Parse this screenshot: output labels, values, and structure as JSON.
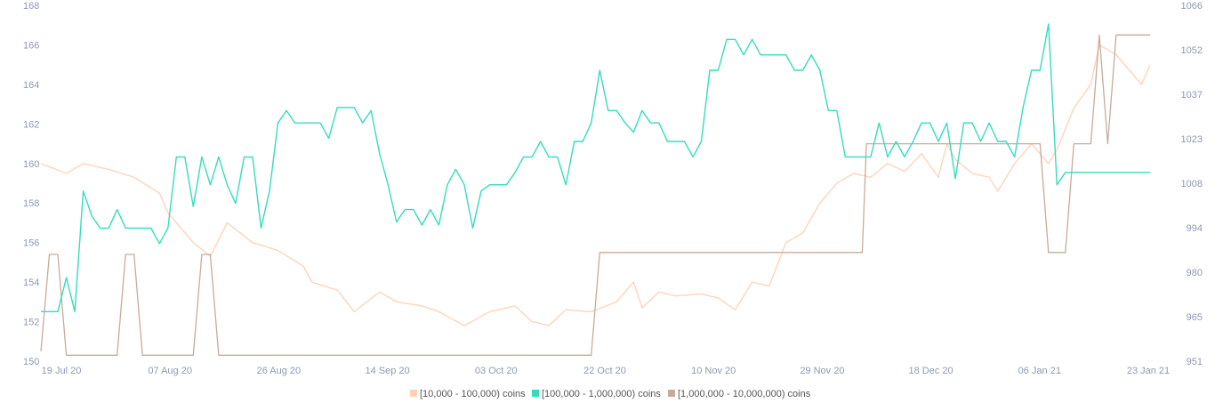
{
  "chart_data": {
    "type": "line",
    "title": "",
    "grid": false,
    "legend_position": "bottom-center",
    "x_tick_labels": [
      "19 Jul 20",
      "07 Aug 20",
      "26 Aug 20",
      "14 Sep 20",
      "03 Oct 20",
      "22 Oct 20",
      "10 Nov 20",
      "29 Nov 20",
      "18 Dec 20",
      "06 Jan 21",
      "23 Jan 21"
    ],
    "y_left": {
      "ticks": [
        "150",
        "152",
        "154",
        "156",
        "158",
        "160",
        "162",
        "164",
        "166",
        "168"
      ],
      "range": [
        150,
        168
      ]
    },
    "y_right": {
      "ticks": [
        "951",
        "965",
        "980",
        "994",
        "1008",
        "1023",
        "1037",
        "1052",
        "1066"
      ],
      "range": [
        951,
        1066
      ]
    },
    "series": [
      {
        "name": "[10,000 - 100,000) coins",
        "axis": "left",
        "color": "#ffd1b8",
        "keypoints": [
          [
            0,
            160
          ],
          [
            3,
            159.5
          ],
          [
            5,
            160
          ],
          [
            8,
            159.7
          ],
          [
            11,
            159.3
          ],
          [
            14,
            158.5
          ],
          [
            15,
            157.5
          ],
          [
            18,
            156
          ],
          [
            20,
            155.3
          ],
          [
            22,
            157
          ],
          [
            25,
            156
          ],
          [
            28,
            155.6
          ],
          [
            31,
            154.8
          ],
          [
            32,
            154
          ],
          [
            35,
            153.6
          ],
          [
            37,
            152.5
          ],
          [
            40,
            153.5
          ],
          [
            42,
            153
          ],
          [
            45,
            152.8
          ],
          [
            47,
            152.5
          ],
          [
            50,
            151.8
          ],
          [
            53,
            152.5
          ],
          [
            56,
            152.8
          ],
          [
            58,
            152
          ],
          [
            60,
            151.8
          ],
          [
            62,
            152.6
          ],
          [
            65,
            152.5
          ],
          [
            68,
            153
          ],
          [
            70,
            154
          ],
          [
            71,
            152.7
          ],
          [
            73,
            153.5
          ],
          [
            75,
            153.3
          ],
          [
            78,
            153.4
          ],
          [
            80,
            153.2
          ],
          [
            82,
            152.6
          ],
          [
            84,
            154
          ],
          [
            86,
            153.8
          ],
          [
            88,
            156
          ],
          [
            90,
            156.5
          ],
          [
            92,
            158
          ],
          [
            94,
            159
          ],
          [
            96,
            159.5
          ],
          [
            98,
            159.3
          ],
          [
            100,
            160
          ],
          [
            102,
            159.6
          ],
          [
            104,
            160.5
          ],
          [
            106,
            159.3
          ],
          [
            107,
            161
          ],
          [
            108,
            160.2
          ],
          [
            110,
            159.5
          ],
          [
            112,
            159.3
          ],
          [
            113,
            158.6
          ],
          [
            115,
            160
          ],
          [
            117,
            161
          ],
          [
            119,
            160
          ],
          [
            120,
            160.7
          ],
          [
            122,
            162.8
          ],
          [
            124,
            164
          ],
          [
            125,
            166
          ],
          [
            127,
            165.5
          ],
          [
            128,
            165
          ],
          [
            130,
            164
          ],
          [
            131,
            165
          ]
        ]
      },
      {
        "name": "[100,000 - 1,000,000) coins",
        "axis": "right",
        "color": "#35dcbb",
        "keypoints": [
          [
            0,
            967
          ],
          [
            2,
            967
          ],
          [
            3,
            978
          ],
          [
            4,
            967
          ],
          [
            5,
            1006
          ],
          [
            6,
            998
          ],
          [
            7,
            994
          ],
          [
            8,
            994
          ],
          [
            9,
            1000
          ],
          [
            10,
            994
          ],
          [
            11,
            994
          ],
          [
            12,
            994
          ],
          [
            13,
            994
          ],
          [
            14,
            989
          ],
          [
            15,
            994
          ],
          [
            16,
            1017
          ],
          [
            17,
            1017
          ],
          [
            18,
            1001
          ],
          [
            19,
            1017
          ],
          [
            20,
            1008
          ],
          [
            21,
            1017
          ],
          [
            22,
            1008
          ],
          [
            23,
            1002
          ],
          [
            24,
            1017
          ],
          [
            25,
            1017
          ],
          [
            26,
            994
          ],
          [
            27,
            1006
          ],
          [
            28,
            1028
          ],
          [
            29,
            1032
          ],
          [
            30,
            1028
          ],
          [
            31,
            1028
          ],
          [
            32,
            1028
          ],
          [
            33,
            1028
          ],
          [
            34,
            1023
          ],
          [
            35,
            1033
          ],
          [
            36,
            1033
          ],
          [
            37,
            1033
          ],
          [
            38,
            1028
          ],
          [
            39,
            1032
          ],
          [
            40,
            1018
          ],
          [
            41,
            1008
          ],
          [
            42,
            996
          ],
          [
            43,
            1000
          ],
          [
            44,
            1000
          ],
          [
            45,
            995
          ],
          [
            46,
            1000
          ],
          [
            47,
            995
          ],
          [
            48,
            1008
          ],
          [
            49,
            1013
          ],
          [
            50,
            1008
          ],
          [
            51,
            994
          ],
          [
            52,
            1006
          ],
          [
            53,
            1008
          ],
          [
            54,
            1008
          ],
          [
            55,
            1008
          ],
          [
            56,
            1012
          ],
          [
            57,
            1017
          ],
          [
            58,
            1017
          ],
          [
            59,
            1022
          ],
          [
            60,
            1017
          ],
          [
            61,
            1017
          ],
          [
            62,
            1008
          ],
          [
            63,
            1022
          ],
          [
            64,
            1022
          ],
          [
            65,
            1028
          ],
          [
            66,
            1045
          ],
          [
            67,
            1032
          ],
          [
            68,
            1032
          ],
          [
            69,
            1028
          ],
          [
            70,
            1025
          ],
          [
            71,
            1032
          ],
          [
            72,
            1028
          ],
          [
            73,
            1028
          ],
          [
            74,
            1022
          ],
          [
            75,
            1022
          ],
          [
            76,
            1022
          ],
          [
            77,
            1017
          ],
          [
            78,
            1022
          ],
          [
            79,
            1045
          ],
          [
            80,
            1045
          ],
          [
            81,
            1055
          ],
          [
            82,
            1055
          ],
          [
            83,
            1050
          ],
          [
            84,
            1055
          ],
          [
            85,
            1050
          ],
          [
            86,
            1050
          ],
          [
            87,
            1050
          ],
          [
            88,
            1050
          ],
          [
            89,
            1045
          ],
          [
            90,
            1045
          ],
          [
            91,
            1050
          ],
          [
            92,
            1045
          ],
          [
            93,
            1032
          ],
          [
            94,
            1032
          ],
          [
            95,
            1017
          ],
          [
            96,
            1017
          ],
          [
            97,
            1017
          ],
          [
            98,
            1017
          ],
          [
            99,
            1028
          ],
          [
            100,
            1017
          ],
          [
            101,
            1022
          ],
          [
            102,
            1017
          ],
          [
            103,
            1022
          ],
          [
            104,
            1028
          ],
          [
            105,
            1028
          ],
          [
            106,
            1022
          ],
          [
            107,
            1028
          ],
          [
            108,
            1010
          ],
          [
            109,
            1028
          ],
          [
            110,
            1028
          ],
          [
            111,
            1022
          ],
          [
            112,
            1028
          ],
          [
            113,
            1022
          ],
          [
            114,
            1022
          ],
          [
            115,
            1017
          ],
          [
            116,
            1033
          ],
          [
            117,
            1045
          ],
          [
            118,
            1045
          ],
          [
            119,
            1060
          ],
          [
            120,
            1008
          ],
          [
            121,
            1012
          ]
        ]
      },
      {
        "name": "[1,000,000 - 10,000,000) coins",
        "axis": "left",
        "color": "#c8aa9a",
        "keypoints": [
          [
            0,
            150.5
          ],
          [
            1,
            155.4
          ],
          [
            2,
            155.4
          ],
          [
            3,
            150.3
          ],
          [
            9,
            150.3
          ],
          [
            10,
            155.4
          ],
          [
            11,
            155.4
          ],
          [
            12,
            150.3
          ],
          [
            18,
            150.3
          ],
          [
            19,
            155.4
          ],
          [
            20,
            155.4
          ],
          [
            21,
            150.3
          ],
          [
            52,
            150.3
          ],
          [
            65,
            150.3
          ],
          [
            66,
            155.5
          ],
          [
            67,
            155.5
          ],
          [
            97,
            155.5
          ],
          [
            97.5,
            161
          ],
          [
            118,
            161
          ],
          [
            119,
            155.5
          ],
          [
            121,
            155.5
          ],
          [
            122,
            161
          ],
          [
            124,
            161
          ],
          [
            125,
            166.5
          ],
          [
            126,
            161
          ],
          [
            127,
            166.5
          ],
          [
            131,
            166.5
          ]
        ]
      }
    ],
    "draw_order": [
      0,
      2,
      1
    ]
  }
}
